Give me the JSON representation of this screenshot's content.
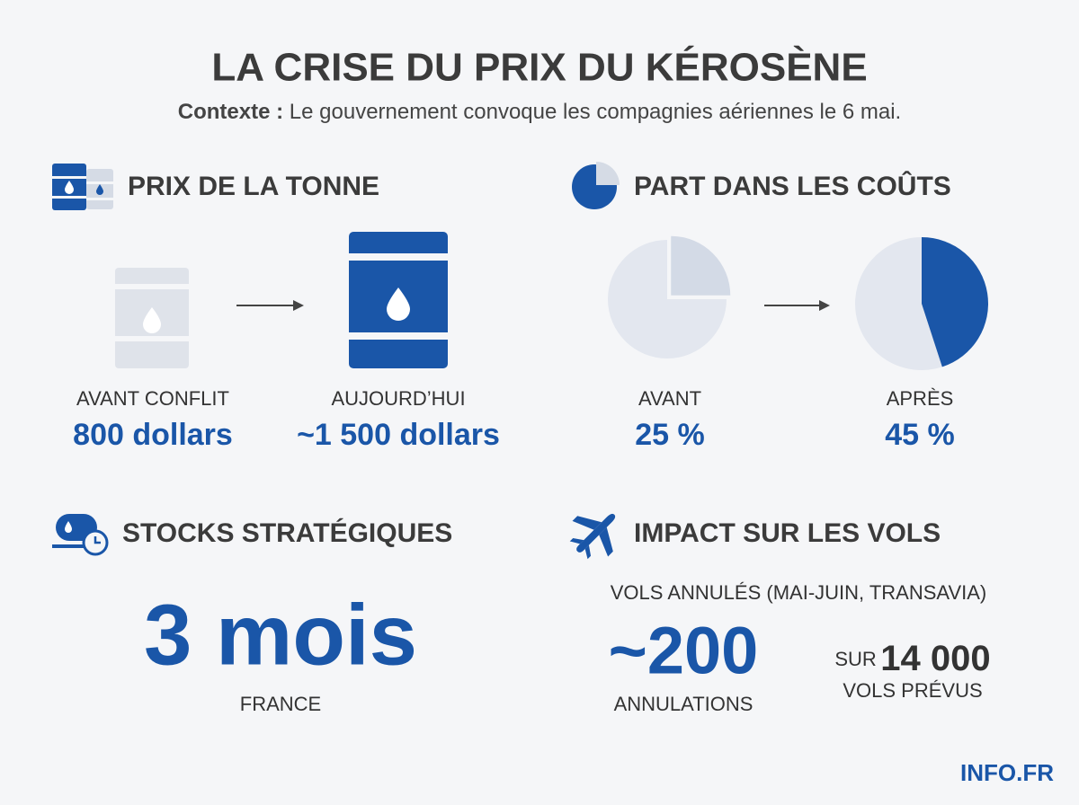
{
  "header": {
    "title": "LA CRISE DU PRIX DU KÉROSÈNE",
    "context_label": "Contexte :",
    "context_text": "Le gouvernement convoque les compagnies aériennes le 6 mai."
  },
  "price": {
    "title": "PRIX DE LA TONNE",
    "before": {
      "label": "AVANT CONFLIT",
      "value": "800 dollars"
    },
    "after": {
      "label": "AUJOURD’HUI",
      "value": "~1 500 dollars"
    }
  },
  "share": {
    "title": "PART DANS LES COÛTS",
    "before": {
      "label": "AVANT",
      "value": 25,
      "value_label": "25 %"
    },
    "after": {
      "label": "APRÈS",
      "value": 45,
      "value_label": "45 %"
    }
  },
  "stocks": {
    "title": "STOCKS STRATÉGIQUES",
    "value": "3 mois",
    "label": "FRANCE"
  },
  "flights": {
    "title": "IMPACT SUR LES VOLS",
    "subtitle": "VOLS ANNULÉS (MAI-JUIN, TRANSAVIA)",
    "cancelled": "~200",
    "cancelled_label": "ANNULATIONS",
    "total_prefix": "SUR",
    "total": "14 000",
    "total_label": "VOLS PRÉVUS"
  },
  "footer": {
    "brand": "INFO.FR"
  }
}
